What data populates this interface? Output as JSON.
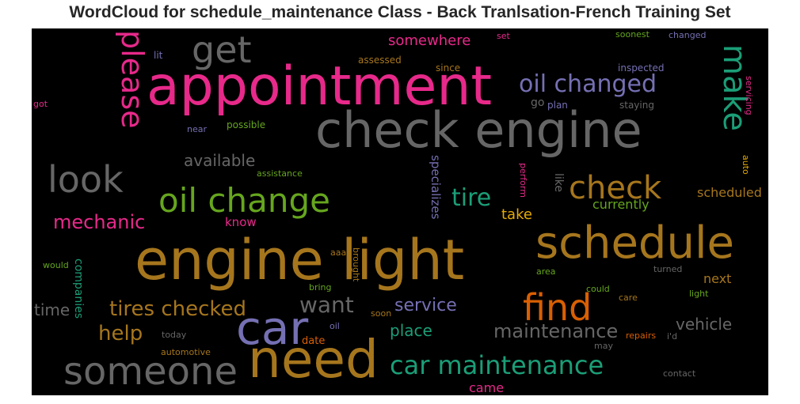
{
  "chart_data": {
    "type": "wordcloud",
    "title": "WordCloud for schedule_maintenance Class - Back Tranlsation-French Training Set",
    "colors": {
      "background": "#000000",
      "pink": "#e7298a",
      "gray": "#666666",
      "orange": "#d95f02",
      "gold": "#a6761d",
      "green": "#1b9e77",
      "lime": "#66a61e",
      "purple": "#7570b3",
      "yellow": "#e6ab02"
    },
    "words": [
      {
        "text": "appointment",
        "color": "pink"
      },
      {
        "text": "check engine",
        "color": "gray"
      },
      {
        "text": "engine light",
        "color": "gold"
      },
      {
        "text": "need",
        "color": "gold"
      },
      {
        "text": "someone",
        "color": "gray"
      },
      {
        "text": "car",
        "color": "purple"
      },
      {
        "text": "schedule",
        "color": "gold"
      },
      {
        "text": "oil change",
        "color": "lime"
      },
      {
        "text": "get",
        "color": "gray"
      },
      {
        "text": "look",
        "color": "gray"
      },
      {
        "text": "please",
        "color": "pink"
      },
      {
        "text": "make",
        "color": "green"
      },
      {
        "text": "find",
        "color": "orange"
      },
      {
        "text": "check",
        "color": "gold"
      },
      {
        "text": "oil changed",
        "color": "purple"
      },
      {
        "text": "car maintenance",
        "color": "green"
      },
      {
        "text": "tires checked",
        "color": "gold"
      },
      {
        "text": "tire",
        "color": "green"
      },
      {
        "text": "mechanic",
        "color": "pink"
      },
      {
        "text": "want",
        "color": "gray"
      },
      {
        "text": "maintenance",
        "color": "gray"
      },
      {
        "text": "service",
        "color": "purple"
      },
      {
        "text": "help",
        "color": "gold"
      },
      {
        "text": "place",
        "color": "green"
      },
      {
        "text": "vehicle",
        "color": "gray"
      },
      {
        "text": "available",
        "color": "gray"
      },
      {
        "text": "somewhere",
        "color": "pink"
      },
      {
        "text": "time",
        "color": "gray"
      },
      {
        "text": "take",
        "color": "yellow"
      },
      {
        "text": "scheduled",
        "color": "gold"
      },
      {
        "text": "currently",
        "color": "lime"
      },
      {
        "text": "next",
        "color": "gold"
      },
      {
        "text": "came",
        "color": "pink"
      },
      {
        "text": "know",
        "color": "pink"
      },
      {
        "text": "specializes",
        "color": "purple"
      },
      {
        "text": "companies",
        "color": "green"
      },
      {
        "text": "like",
        "color": "gray"
      },
      {
        "text": "go",
        "color": "gray"
      },
      {
        "text": "plan",
        "color": "purple"
      },
      {
        "text": "staying",
        "color": "gray"
      },
      {
        "text": "inspected",
        "color": "purple"
      },
      {
        "text": "since",
        "color": "gold"
      },
      {
        "text": "assessed",
        "color": "gold"
      },
      {
        "text": "set",
        "color": "pink"
      },
      {
        "text": "soonest",
        "color": "lime"
      },
      {
        "text": "changed",
        "color": "purple"
      },
      {
        "text": "lit",
        "color": "purple"
      },
      {
        "text": "got",
        "color": "pink"
      },
      {
        "text": "near",
        "color": "purple"
      },
      {
        "text": "possible",
        "color": "lime"
      },
      {
        "text": "assistance",
        "color": "lime"
      },
      {
        "text": "perform",
        "color": "pink"
      },
      {
        "text": "servicing",
        "color": "pink"
      },
      {
        "text": "auto",
        "color": "yellow"
      },
      {
        "text": "would",
        "color": "lime"
      },
      {
        "text": "aaa",
        "color": "gold"
      },
      {
        "text": "brought",
        "color": "gold"
      },
      {
        "text": "bring",
        "color": "lime"
      },
      {
        "text": "area",
        "color": "lime"
      },
      {
        "text": "turned",
        "color": "gray"
      },
      {
        "text": "could",
        "color": "lime"
      },
      {
        "text": "light",
        "color": "lime"
      },
      {
        "text": "care",
        "color": "gold"
      },
      {
        "text": "soon",
        "color": "gold"
      },
      {
        "text": "oil",
        "color": "purple"
      },
      {
        "text": "today",
        "color": "gray"
      },
      {
        "text": "date",
        "color": "orange"
      },
      {
        "text": "automotive",
        "color": "gold"
      },
      {
        "text": "repairs",
        "color": "orange"
      },
      {
        "text": "i'd",
        "color": "gray"
      },
      {
        "text": "may",
        "color": "gray"
      },
      {
        "text": "contact",
        "color": "gray"
      }
    ]
  }
}
